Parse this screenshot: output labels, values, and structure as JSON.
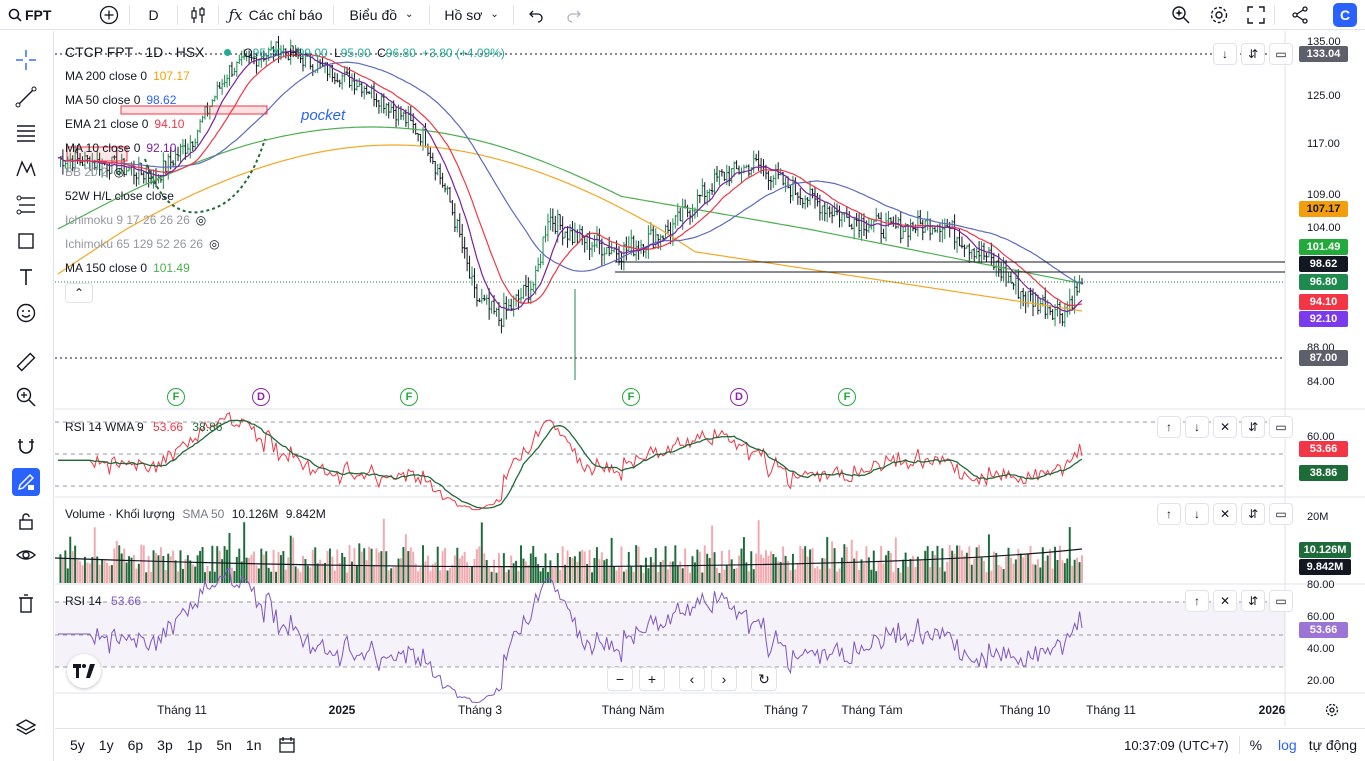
{
  "topbar": {
    "symbol": "FPT",
    "interval": "D",
    "indicators_label": "Các chỉ báo",
    "layout_label": "Biểu đồ",
    "profile_label": "Hồ sơ"
  },
  "legend": {
    "title": "CTCP FPT · 1D · HSX",
    "open_label": "O",
    "open": "95.20",
    "high_label": "H",
    "high": "99.00",
    "low_label": "L",
    "low": "95.00",
    "close_label": "C",
    "close": "96.80",
    "change": "+3.80 (+4.09%)",
    "indicators": [
      {
        "name": "MA 200 close 0",
        "value": "107.17",
        "color": "#f59e0b"
      },
      {
        "name": "MA 50 close 0",
        "value": "98.62",
        "color": "#2962ff"
      },
      {
        "name": "EMA 21 close 0",
        "value": "94.10",
        "color": "#f23645"
      },
      {
        "name": "MA 10 close 0",
        "value": "92.10",
        "color": "#7b1fa2"
      },
      {
        "name": "BB 20 2",
        "value": "",
        "color": "#9598a1"
      },
      {
        "name": "52W H/L close close",
        "value": "",
        "color": "#131722"
      },
      {
        "name": "Ichimoku 9 17 26 26 26",
        "value": "",
        "color": "#9598a1"
      },
      {
        "name": "Ichimoku 65 129 52 26 26",
        "value": "",
        "color": "#9598a1"
      },
      {
        "name": "MA 150 close 0",
        "value": "101.49",
        "color": "#4caf50"
      }
    ],
    "annotation": "pocket"
  },
  "price_axis": {
    "ticks": [
      "135.00",
      "125.00",
      "117.00",
      "109.00",
      "104.00",
      "88.00",
      "84.00"
    ],
    "boxes": [
      {
        "label": "133.04",
        "color": "#5d606b"
      },
      {
        "label": "107.17",
        "color": "#f59e0b",
        "text": "#131722"
      },
      {
        "label": "101.49",
        "color": "#22ab3b"
      },
      {
        "label": "98.62",
        "color": "#131722"
      },
      {
        "label": "96.80",
        "color": "#1e8a4f"
      },
      {
        "label": "94.10",
        "color": "#f23645"
      },
      {
        "label": "92.10",
        "color": "#7c3aed"
      },
      {
        "label": "87.00",
        "color": "#5d606b"
      }
    ]
  },
  "events": [
    "F",
    "D",
    "F",
    "F",
    "D",
    "F"
  ],
  "rsi_wma": {
    "label": "RSI 14 WMA 9",
    "v1": "53.66",
    "v2": "38.86",
    "axis": [
      "60.00"
    ],
    "boxes": [
      "53.66",
      "38.86"
    ]
  },
  "volume": {
    "label": "Volume · Khối lượng",
    "sma_label": "SMA 50",
    "v1": "10.126M",
    "v2": "9.842M",
    "axis": "20M",
    "boxes": [
      "10.126M",
      "9.842M"
    ]
  },
  "rsi": {
    "label": "RSI 14",
    "value": "53.66",
    "axis": [
      "80.00",
      "60.00",
      "40.00",
      "20.00"
    ],
    "box": "53.66"
  },
  "time_axis": [
    "Tháng 11",
    "2025",
    "Tháng 3",
    "Tháng Năm",
    "Tháng 7",
    "Tháng Tám",
    "Tháng 10",
    "Tháng 11",
    "2026"
  ],
  "bottom": {
    "ranges": [
      "5y",
      "1y",
      "6p",
      "3p",
      "1p",
      "5n",
      "1n"
    ],
    "time": "10:37:09 (UTC+7)",
    "percent": "%",
    "log": "log",
    "auto": "tự động"
  }
}
